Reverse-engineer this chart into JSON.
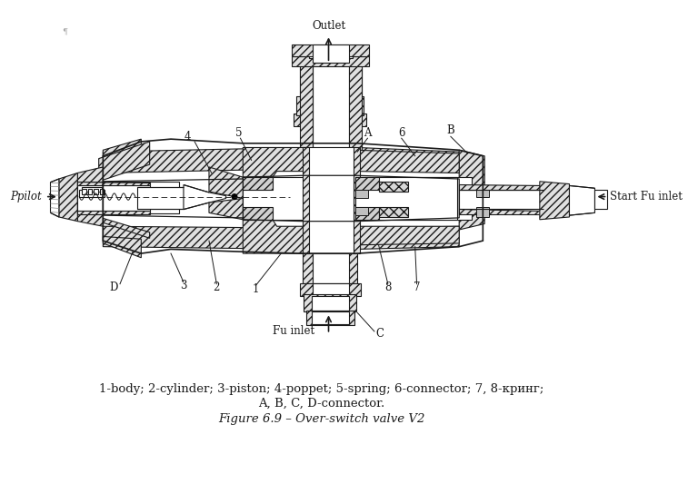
{
  "title": "Figure 6.9 – Over-switch valve V2",
  "caption_line1": "1-body; 2-cylinder; 3-piston; 4-poppet; 5-spring; 6-connector; 7, 8-кринг;",
  "caption_line2": "A, B, C, D-connector.",
  "bg_color": "#ffffff",
  "line_color": "#1a1a1a",
  "fig_width": 7.57,
  "fig_height": 5.33,
  "dpi": 100,
  "labels": {
    "outlet": "Outlet",
    "fu_inlet": "Fu inlet",
    "ppilot": "Ppilot",
    "start_fu": "Start Fu inlet",
    "num1": "1",
    "num2": "2",
    "num3": "3",
    "num4": "4",
    "num5": "5",
    "num6": "6",
    "num7": "7",
    "num8": "8",
    "A": "A",
    "B": "B",
    "C": "C",
    "D": "D"
  }
}
